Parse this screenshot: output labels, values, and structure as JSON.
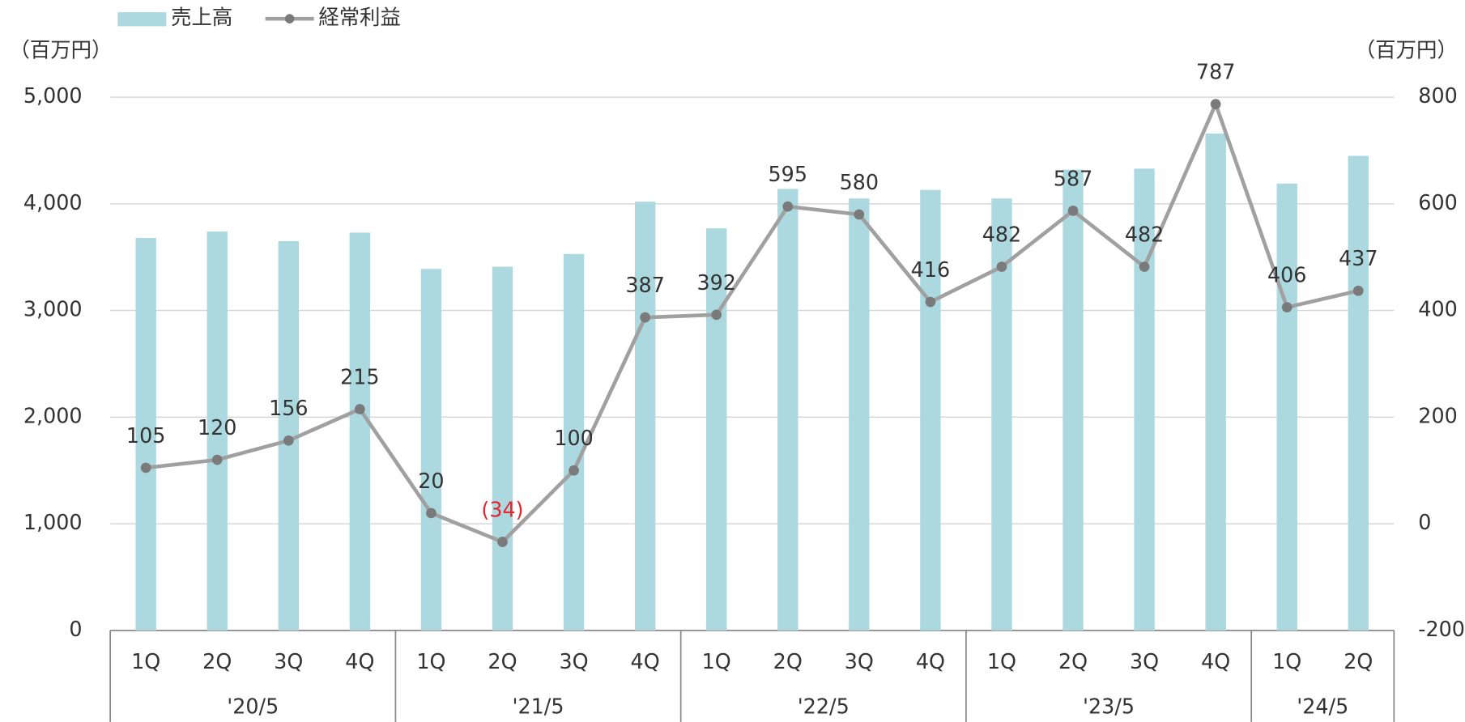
{
  "chart_data": {
    "type": "bar_line",
    "y_unit_label": "（百万円）",
    "y2_unit_label": "（百万円）",
    "groups": [
      {
        "name": "'20/5",
        "categories": [
          "1Q",
          "2Q",
          "3Q",
          "4Q"
        ]
      },
      {
        "name": "'21/5",
        "categories": [
          "1Q",
          "2Q",
          "3Q",
          "4Q"
        ]
      },
      {
        "name": "'22/5",
        "categories": [
          "1Q",
          "2Q",
          "3Q",
          "4Q"
        ]
      },
      {
        "name": "'23/5",
        "categories": [
          "1Q",
          "2Q",
          "3Q",
          "4Q"
        ]
      },
      {
        "name": "'24/5",
        "categories": [
          "1Q",
          "2Q"
        ]
      }
    ],
    "series": [
      {
        "name": "売上高",
        "type": "bar",
        "color": "#acd9df",
        "values": [
          3680,
          3740,
          3650,
          3730,
          3390,
          3410,
          3530,
          4020,
          3770,
          4140,
          4050,
          4130,
          4050,
          4320,
          4330,
          4660,
          4190,
          4450
        ]
      },
      {
        "name": "経常利益",
        "type": "line",
        "axis": "y2",
        "color": "#a0a0a0",
        "marker_color": "#7a7a7a",
        "values": [
          105,
          120,
          156,
          215,
          20,
          -34,
          100,
          387,
          392,
          595,
          580,
          416,
          482,
          587,
          482,
          787,
          406,
          437
        ],
        "value_labels": [
          "105",
          "120",
          "156",
          "215",
          "20",
          "(34)",
          "100",
          "387",
          "392",
          "595",
          "580",
          "416",
          "482",
          "587",
          "482",
          "787",
          "406",
          "437"
        ],
        "negative_label_color": "#e8242c"
      }
    ],
    "ylim": [
      0,
      5000
    ],
    "yticks": [
      0,
      {
        "value": 1000,
        "label": "1,000"
      },
      {
        "value": 2000,
        "label": "2,000"
      },
      {
        "value": 3000,
        "label": "3,000"
      },
      {
        "value": 4000,
        "label": "4,000"
      },
      {
        "value": 5000,
        "label": "5,000"
      }
    ],
    "y2lim": [
      -200,
      800
    ],
    "y2ticks": [
      -200,
      0,
      200,
      400,
      600,
      800
    ],
    "grid": true
  }
}
